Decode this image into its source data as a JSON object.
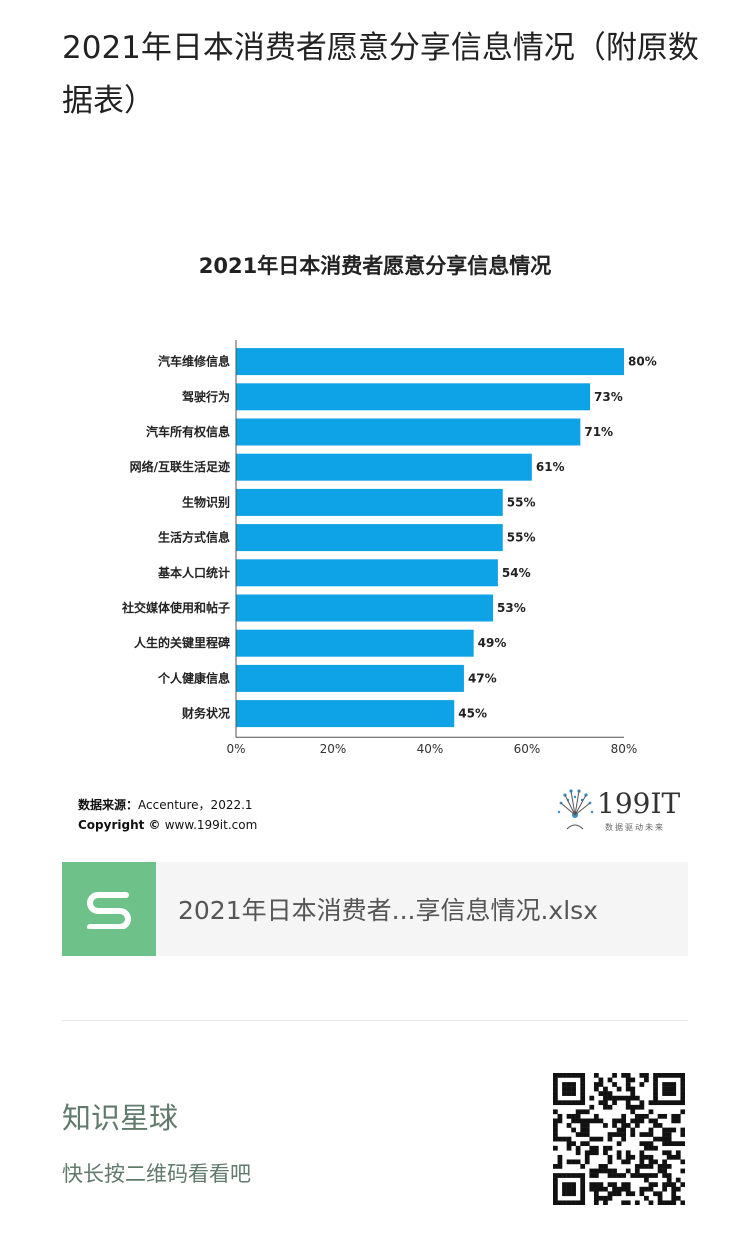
{
  "article": {
    "title": "2021年日本消费者愿意分享信息情况（附原数据表）"
  },
  "chart_data": {
    "type": "bar",
    "orientation": "horizontal",
    "title": "2021年日本消费者愿意分享信息情况",
    "categories": [
      "汽车维修信息",
      "驾驶行为",
      "汽车所有权信息",
      "网络/互联生活足迹",
      "生物识别",
      "生活方式信息",
      "基本人口统计",
      "社交媒体使用和帖子",
      "人生的关键里程碑",
      "个人健康信息",
      "财务状况"
    ],
    "values": [
      80,
      73,
      71,
      61,
      55,
      55,
      54,
      53,
      49,
      47,
      45
    ],
    "value_labels": [
      "80%",
      "73%",
      "71%",
      "61%",
      "55%",
      "55%",
      "54%",
      "53%",
      "49%",
      "47%",
      "45%"
    ],
    "xlim": [
      0,
      80
    ],
    "xticks": [
      "0%",
      "20%",
      "40%",
      "60%",
      "80%"
    ],
    "bar_color": "#0ea2e6",
    "grid": false,
    "xlabel": "",
    "ylabel": ""
  },
  "source": {
    "label": "数据来源：",
    "text": "Accenture，2022.1",
    "copyright_label": "Copyright ©",
    "copyright_text": "www.199it.com"
  },
  "brand": {
    "name": "199IT",
    "tagline": "数据驱动未来"
  },
  "file": {
    "name": "2021年日本消费者...享信息情况.xlsx",
    "icon": "spreadsheet-s-icon",
    "icon_color": "#6fc18a"
  },
  "planet": {
    "title": "知识星球",
    "subtitle": "快长按二维码看看吧"
  },
  "qr": {
    "icon": "qr-code-icon"
  }
}
